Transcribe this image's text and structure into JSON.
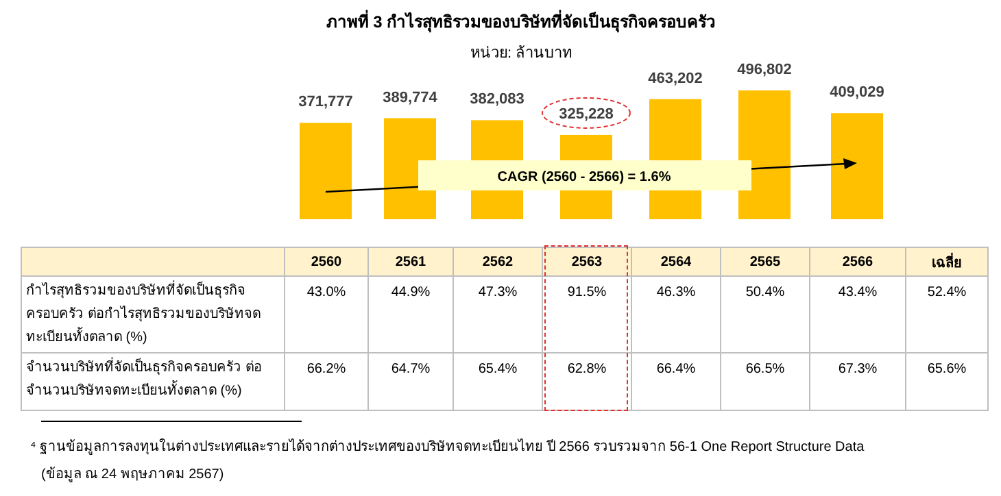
{
  "chart_data": [
    {
      "type": "bar",
      "title": "ภาพที่ 3 กำไรสุทธิรวมของบริษัทที่จัดเป็นธุรกิจครอบครัว",
      "subtitle": "หน่วย: ล้านบาท",
      "categories": [
        null,
        null,
        null,
        null,
        null,
        null,
        null
      ],
      "values": [
        371777,
        389774,
        382083,
        325228,
        463202,
        496802,
        409029
      ],
      "color": "#ffc000",
      "value_labels": [
        "371,777",
        "389,774",
        "382,083",
        "325,228",
        "463,202",
        "496,802",
        "409,029"
      ],
      "annotations": [
        "CAGR (2560 - 2566) = 1.6%"
      ]
    },
    {
      "type": "heatmap",
      "categories": [
        "2560",
        "2561",
        "2562",
        "2563",
        "2564",
        "2565",
        "2566",
        "เฉลี่ย"
      ],
      "y_categories": [
        "กำไรสุทธิรวมของบริษัทที่จัดเป็นธุรกิจครอบครัว ต่อกำไรสุทธิรวมของบริษัทจดทะเบียนทั้งตลาด (%)",
        "จำนวนบริษัทที่จัดเป็นธุรกิจครอบครัว ต่อจำนวนบริษัทจดทะเบียนทั้งตลาด (%)"
      ],
      "cells": [
        [
          43.0,
          44.9,
          47.3,
          91.5,
          46.3,
          50.4,
          43.4,
          52.4
        ],
        [
          66.2,
          64.7,
          65.4,
          62.8,
          66.4,
          66.5,
          67.3,
          65.6
        ]
      ],
      "cell_labels": [
        [
          "43.0%",
          "44.9%",
          "47.3%",
          "91.5%",
          "46.3%",
          "50.4%",
          "43.4%",
          "52.4%"
        ],
        [
          "66.2%",
          "64.7%",
          "65.4%",
          "62.8%",
          "66.4%",
          "66.5%",
          "67.3%",
          "65.6%"
        ]
      ],
      "annotations": [
        "⁴ ฐานข้อมูลการลงทุนในต่างประเทศและรายได้จากต่างประเทศของบริษัทจดทะเบียนไทย ปี 2566 รวบรวมจาก 56-1 One Report Structure Data",
        "(ข้อมูล ณ 24 พฤษภาคม 2567)"
      ]
    }
  ]
}
